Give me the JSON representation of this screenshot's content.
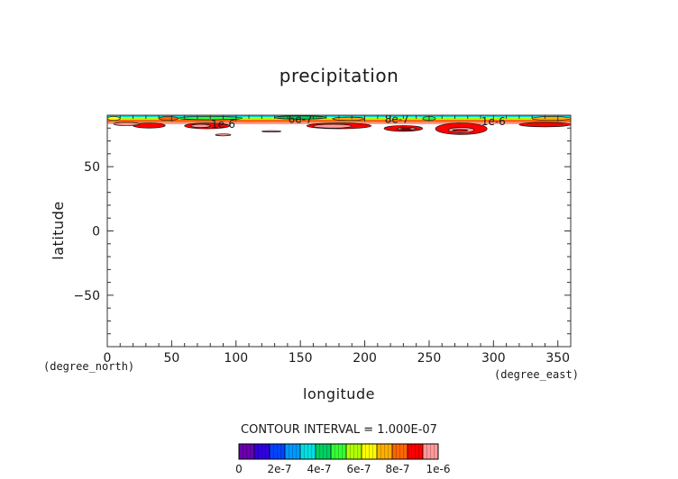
{
  "chart_data": {
    "type": "heatmap",
    "title": "precipitation",
    "xlabel": "longitude",
    "ylabel": "latitude",
    "x_unit": "(degree_east)",
    "y_unit": "(degree_north)",
    "xlim": [
      0,
      360
    ],
    "ylim": [
      -90,
      90
    ],
    "x_ticks": [
      0,
      50,
      100,
      150,
      200,
      250,
      300,
      350
    ],
    "y_ticks": [
      50,
      0,
      -50
    ],
    "contour_interval_text": "CONTOUR INTERVAL = 1.000E-07",
    "colorbar": {
      "colors": [
        "#6a00b0",
        "#3000e0",
        "#0044ff",
        "#0099ff",
        "#00e0e0",
        "#00d060",
        "#33ff33",
        "#b0ff00",
        "#ffff00",
        "#ffb000",
        "#ff6600",
        "#ff0000",
        "#ff9a9a"
      ],
      "labels": [
        "0",
        "2e-7",
        "4e-7",
        "6e-7",
        "8e-7",
        "1e-6"
      ]
    },
    "contour_labels": [
      {
        "text": "1e-6",
        "lon": 90,
        "lat": 83
      },
      {
        "text": "6e-7",
        "lon": 150,
        "lat": 87
      },
      {
        "text": "8e-7",
        "lon": 225,
        "lat": 87
      },
      {
        "text": "1e-6",
        "lon": 300,
        "lat": 85
      }
    ],
    "field_bands": [
      {
        "lon": [
          0,
          360
        ],
        "lat": [
          88.5,
          90
        ],
        "level": 4
      },
      {
        "lon": [
          0,
          360
        ],
        "lat": [
          86.5,
          88.5
        ],
        "level": 7
      },
      {
        "lon": [
          0,
          360
        ],
        "lat": [
          84.5,
          86.5
        ],
        "level": 10
      },
      {
        "lon": [
          0,
          360
        ],
        "lat": [
          83,
          84.5
        ],
        "level": 12
      }
    ],
    "field_patches": [
      {
        "lon": [
          0,
          10
        ],
        "lat": [
          86,
          89
        ],
        "level": 8
      },
      {
        "lon": [
          40,
          55
        ],
        "lat": [
          86,
          89
        ],
        "level": 10
      },
      {
        "lon": [
          55,
          105
        ],
        "lat": [
          86.5,
          89
        ],
        "level": 6
      },
      {
        "lon": [
          130,
          170
        ],
        "lat": [
          87,
          89.5
        ],
        "level": 5
      },
      {
        "lon": [
          175,
          200
        ],
        "lat": [
          86,
          88.5
        ],
        "level": 9
      },
      {
        "lon": [
          245,
          255
        ],
        "lat": [
          86,
          89
        ],
        "level": 6
      },
      {
        "lon": [
          330,
          360
        ],
        "lat": [
          86,
          89
        ],
        "level": 9
      },
      {
        "lon": [
          20,
          45
        ],
        "lat": [
          80,
          84
        ],
        "level": 11
      },
      {
        "lon": [
          60,
          95
        ],
        "lat": [
          79.5,
          84
        ],
        "level": 11
      },
      {
        "lon": [
          155,
          205
        ],
        "lat": [
          79.5,
          84
        ],
        "level": 11
      },
      {
        "lon": [
          215,
          245
        ],
        "lat": [
          77.5,
          82
        ],
        "level": 11
      },
      {
        "lon": [
          255,
          295
        ],
        "lat": [
          75,
          84
        ],
        "level": 11
      },
      {
        "lon": [
          320,
          360
        ],
        "lat": [
          81,
          84.5
        ],
        "level": 11
      },
      {
        "lon": [
          5,
          25
        ],
        "lat": [
          82,
          84.5
        ],
        "level": 12
      },
      {
        "lon": [
          65,
          80
        ],
        "lat": [
          80.5,
          83
        ],
        "level": 12
      },
      {
        "lon": [
          160,
          190
        ],
        "lat": [
          80,
          83
        ],
        "level": 12
      },
      {
        "lon": [
          225,
          240
        ],
        "lat": [
          78.5,
          80.5
        ],
        "level": 12
      },
      {
        "lon": [
          265,
          285
        ],
        "lat": [
          76.5,
          80.5
        ],
        "level": 12
      },
      {
        "lon": [
          84,
          96
        ],
        "lat": [
          74,
          75.5
        ],
        "level": 12
      },
      {
        "lon": [
          120,
          135
        ],
        "lat": [
          77,
          78
        ],
        "level": 12
      },
      {
        "lon": [
          268,
          280
        ],
        "lat": [
          77.5,
          79
        ],
        "level": 11
      },
      {
        "lon": [
          228,
          236
        ],
        "lat": [
          79,
          80
        ],
        "level": 11
      }
    ]
  }
}
